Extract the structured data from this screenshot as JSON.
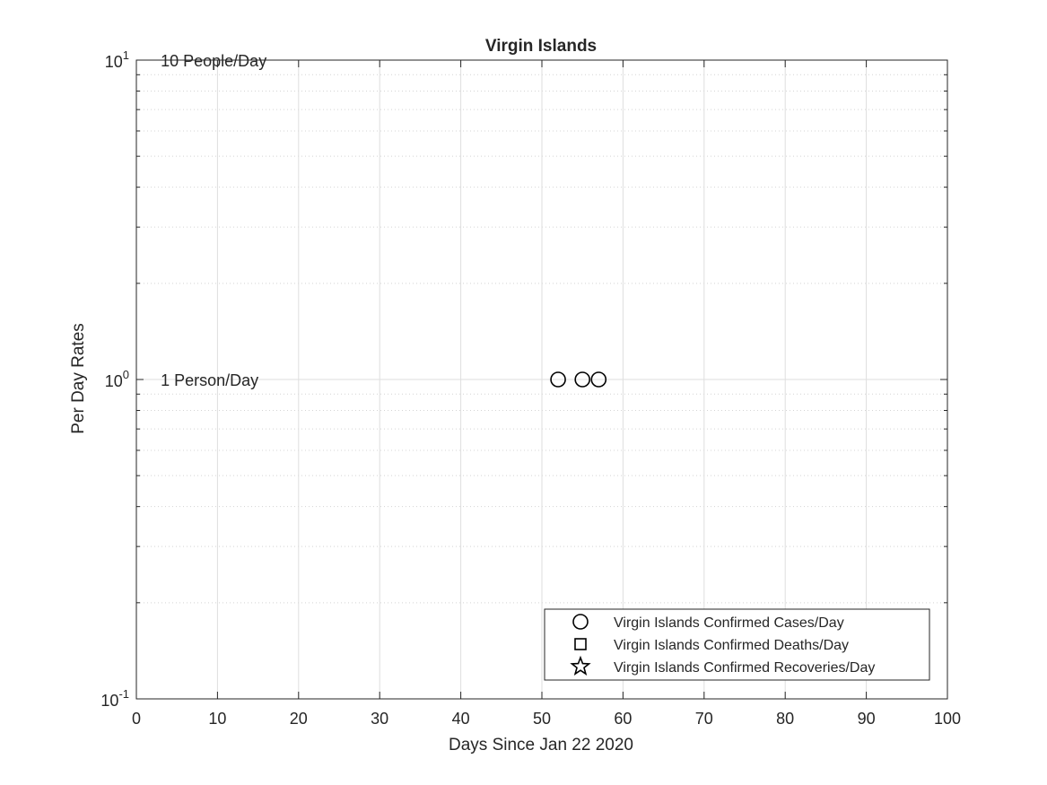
{
  "chart_data": {
    "type": "scatter",
    "title": "Virgin Islands",
    "xlabel": "Days Since Jan 22 2020",
    "ylabel": "Per Day Rates",
    "xlim": [
      0,
      100
    ],
    "ylim": [
      0.1,
      10
    ],
    "yscale": "log",
    "grid": true,
    "minor_grid": true,
    "x_ticks": [
      0,
      10,
      20,
      30,
      40,
      50,
      60,
      70,
      80,
      90,
      100
    ],
    "y_ticks": [
      {
        "value": 0.1,
        "base": "10",
        "exp": "-1"
      },
      {
        "value": 1,
        "base": "10",
        "exp": "0"
      },
      {
        "value": 10,
        "base": "10",
        "exp": "1"
      }
    ],
    "annotations": [
      {
        "text": "10 People/Day",
        "x": 3,
        "y": 10
      },
      {
        "text": "1 Person/Day",
        "x": 3,
        "y": 1
      }
    ],
    "series": [
      {
        "name": "Virgin Islands Confirmed Cases/Day",
        "marker": "circle",
        "x": [
          52,
          55,
          57
        ],
        "y": [
          1,
          1,
          1
        ]
      },
      {
        "name": "Virgin Islands Confirmed Deaths/Day",
        "marker": "square",
        "x": [],
        "y": []
      },
      {
        "name": "Virgin Islands Confirmed Recoveries/Day",
        "marker": "star",
        "x": [],
        "y": []
      }
    ],
    "legend_position": "bottom-right",
    "colors": {
      "axis": "#262626",
      "grid": "#dedede",
      "marker": "#000000"
    }
  }
}
